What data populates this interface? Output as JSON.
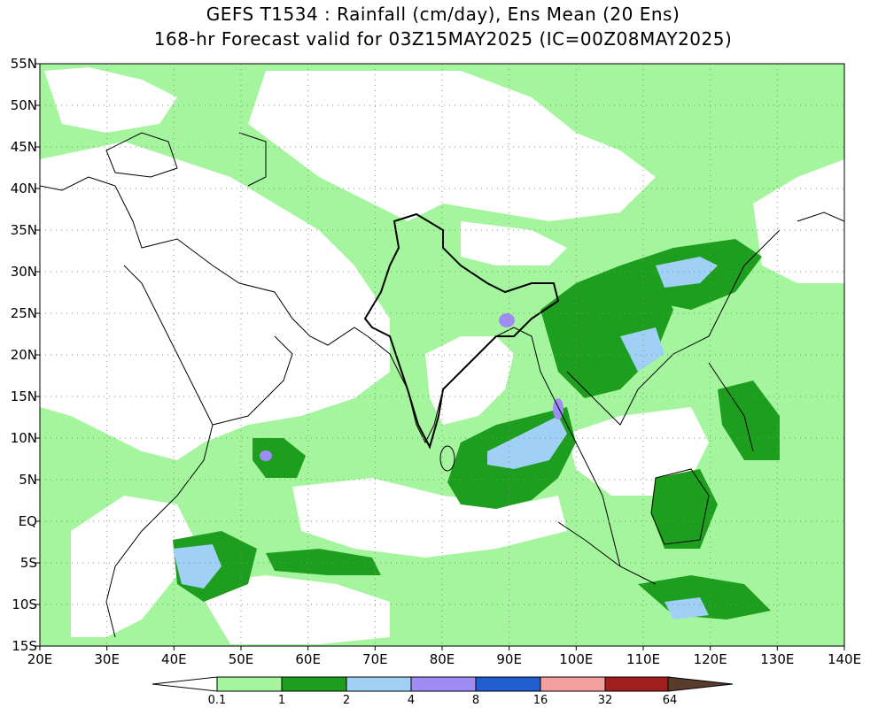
{
  "title": {
    "line1": "GEFS T1534 : Rainfall (cm/day), Ens Mean (20 Ens)",
    "line2": "168-hr Forecast valid for 03Z15MAY2025 (IC=00Z08MAY2025)"
  },
  "axes": {
    "lat_labels": [
      "55N",
      "50N",
      "45N",
      "40N",
      "35N",
      "30N",
      "25N",
      "20N",
      "15N",
      "10N",
      "5N",
      "EQ",
      "5S",
      "10S",
      "15S"
    ],
    "lat_values": [
      55,
      50,
      45,
      40,
      35,
      30,
      25,
      20,
      15,
      10,
      5,
      0,
      -5,
      -10,
      -15
    ],
    "lon_labels": [
      "20E",
      "30E",
      "40E",
      "50E",
      "60E",
      "70E",
      "80E",
      "90E",
      "100E",
      "110E",
      "120E",
      "130E",
      "140E"
    ],
    "lon_values": [
      20,
      30,
      40,
      50,
      60,
      70,
      80,
      90,
      100,
      110,
      120,
      130,
      140
    ],
    "lon_range": [
      20,
      140
    ],
    "lat_range": [
      -15,
      55
    ],
    "grid": "dotted"
  },
  "colorbar": {
    "labels": [
      "0.1",
      "1",
      "2",
      "4",
      "8",
      "16",
      "32",
      "64"
    ],
    "colors": [
      "#ffffff",
      "#a4f59d",
      "#1e9e1e",
      "#a0d0f5",
      "#a08cf5",
      "#1f5fd0",
      "#f5a0a0",
      "#a01e1e",
      "#5a3c2d"
    ]
  },
  "legend_semantics": {
    "units": "cm/day",
    "classes": [
      "<0.1",
      "0.1-1",
      "1-2",
      "2-4",
      "4-8",
      "8-16",
      "16-32",
      "32-64",
      ">64"
    ]
  },
  "regions": {
    "india": "India",
    "land_outline_color": "#000000",
    "colors": {
      "ocean_bg": "#ffffff",
      "light_green": "#a4f59d",
      "dark_green": "#1e9e1e",
      "light_blue": "#a0d0f5",
      "violet": "#a08cf5"
    }
  }
}
